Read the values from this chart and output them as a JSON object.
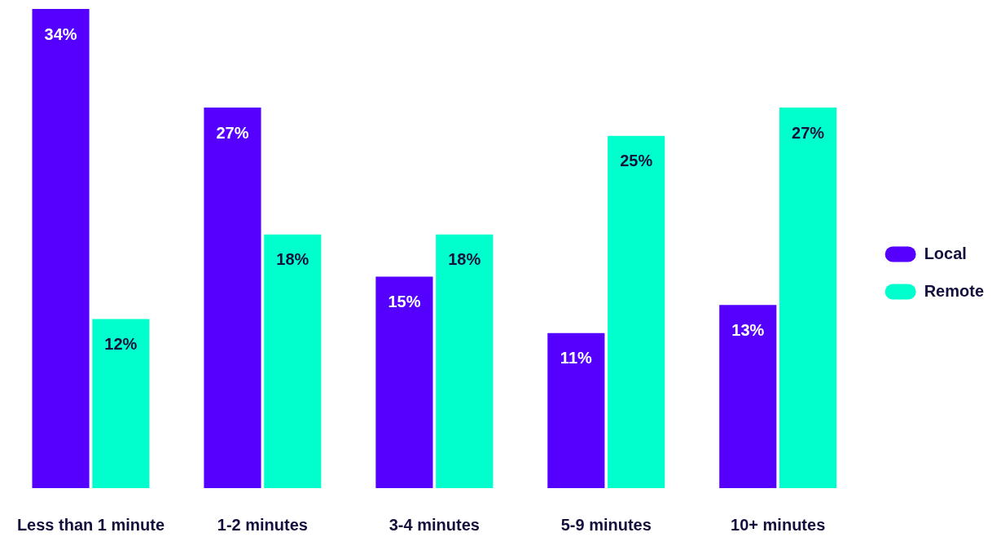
{
  "chart_data": {
    "type": "bar",
    "categories": [
      "Less than 1 minute",
      "1-2 minutes",
      "3-4 minutes",
      "5-9 minutes",
      "10+ minutes"
    ],
    "series": [
      {
        "name": "Local",
        "color": "#5500ff",
        "values": [
          34,
          27,
          15,
          11,
          13
        ],
        "value_labels": [
          "34%",
          "27%",
          "15%",
          "11%",
          "13%"
        ]
      },
      {
        "name": "Remote",
        "color": "#00ffcc",
        "values": [
          12,
          18,
          18,
          25,
          27
        ],
        "value_labels": [
          "12%",
          "18%",
          "18%",
          "25%",
          "27%"
        ]
      }
    ],
    "legend": "right",
    "grid": false
  }
}
